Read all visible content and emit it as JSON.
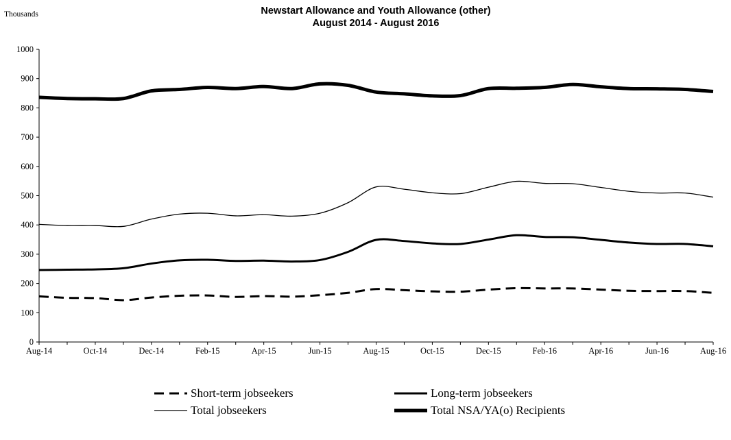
{
  "chart_data": {
    "type": "line",
    "title": "Newstart Allowance and Youth Allowance (other)",
    "subtitle": "August 2014 - August 2016",
    "ylabel": "Thousands",
    "ylim": [
      0,
      1000
    ],
    "yticks": [
      0,
      100,
      200,
      300,
      400,
      500,
      600,
      700,
      800,
      900,
      1000
    ],
    "grid": false,
    "legend_position": "bottom",
    "x": [
      "Aug-14",
      "Sep-14",
      "Oct-14",
      "Nov-14",
      "Dec-14",
      "Jan-15",
      "Feb-15",
      "Mar-15",
      "Apr-15",
      "May-15",
      "Jun-15",
      "Jul-15",
      "Aug-15",
      "Sep-15",
      "Oct-15",
      "Nov-15",
      "Dec-15",
      "Jan-16",
      "Feb-16",
      "Mar-16",
      "Apr-16",
      "May-16",
      "Jun-16",
      "Jul-16",
      "Aug-16"
    ],
    "x_tick_labels": [
      "Aug-14",
      "Oct-14",
      "Dec-14",
      "Feb-15",
      "Apr-15",
      "Jun-15",
      "Aug-15",
      "Oct-15",
      "Dec-15",
      "Feb-16",
      "Apr-16",
      "Jun-16",
      "Aug-16"
    ],
    "series": [
      {
        "name": "Short-term jobseekers",
        "style": "dashed",
        "values": [
          156,
          151,
          150,
          143,
          152,
          158,
          159,
          154,
          157,
          155,
          160,
          168,
          181,
          177,
          173,
          172,
          179,
          184,
          183,
          183,
          179,
          175,
          174,
          174,
          168
        ]
      },
      {
        "name": "Long-term jobseekers",
        "style": "solid-medium",
        "values": [
          246,
          247,
          248,
          252,
          268,
          279,
          281,
          277,
          278,
          275,
          280,
          308,
          349,
          345,
          337,
          335,
          350,
          365,
          359,
          358,
          349,
          340,
          335,
          335,
          327
        ]
      },
      {
        "name": "Total jobseekers",
        "style": "solid-thin",
        "values": [
          402,
          398,
          398,
          395,
          420,
          437,
          440,
          431,
          435,
          430,
          440,
          476,
          530,
          522,
          510,
          507,
          529,
          549,
          542,
          541,
          528,
          515,
          509,
          509,
          495
        ]
      },
      {
        "name": "Total NSA/YA(o) Recipients",
        "style": "solid-thick",
        "values": [
          836,
          832,
          831,
          832,
          858,
          863,
          870,
          866,
          873,
          866,
          882,
          877,
          854,
          848,
          841,
          842,
          866,
          867,
          870,
          880,
          872,
          866,
          865,
          863,
          856
        ]
      }
    ]
  }
}
